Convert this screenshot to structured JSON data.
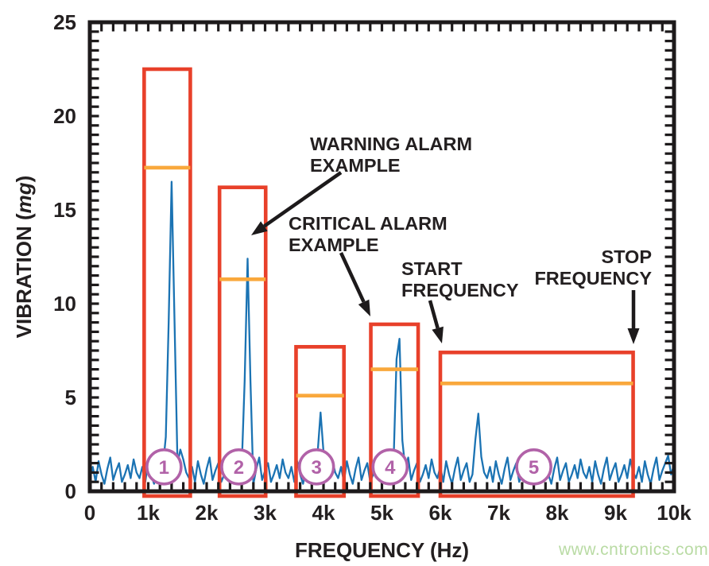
{
  "chart_data": {
    "type": "line",
    "title": "",
    "xlabel": "FREQUENCY (Hz)",
    "ylabel": "VIBRATION (mg)",
    "ylabel_italic_part": "mg",
    "xlim": [
      0,
      10000
    ],
    "ylim": [
      0,
      25
    ],
    "grid": false,
    "legend": "none",
    "x_ticks": [
      {
        "value": 0,
        "label": "0"
      },
      {
        "value": 1000,
        "label": "1k"
      },
      {
        "value": 2000,
        "label": "2k"
      },
      {
        "value": 3000,
        "label": "3k"
      },
      {
        "value": 4000,
        "label": "4k"
      },
      {
        "value": 5000,
        "label": "5k"
      },
      {
        "value": 6000,
        "label": "6k"
      },
      {
        "value": 7000,
        "label": "7k"
      },
      {
        "value": 8000,
        "label": "8k"
      },
      {
        "value": 9000,
        "label": "9k"
      },
      {
        "value": 10000,
        "label": "10k"
      }
    ],
    "y_ticks": [
      {
        "value": 0,
        "label": "0"
      },
      {
        "value": 5,
        "label": "5"
      },
      {
        "value": 10,
        "label": "10"
      },
      {
        "value": 15,
        "label": "15"
      },
      {
        "value": 20,
        "label": "20"
      },
      {
        "value": 25,
        "label": "25"
      }
    ],
    "minor_tick_step_x_hz": 200,
    "minor_tick_step_y_mg": 0.5,
    "spectrum": {
      "name": "vibration-spectrum",
      "color": "#1b73b3",
      "sample_step_hz": 50,
      "noise_pattern_mg": [
        0.7,
        1.3,
        0.5,
        1.6,
        0.9,
        0.4,
        1.2,
        1.8,
        0.6,
        1.1,
        1.5,
        0.5,
        0.9,
        1.4,
        0.7,
        1.7,
        1.0
      ],
      "peaks": [
        {
          "freq_hz": 760,
          "amplitude_mg": 1.9,
          "halfwidth_hz": 80
        },
        {
          "freq_hz": 1300,
          "amplitude_mg": 2.9,
          "halfwidth_hz": 90
        },
        {
          "freq_hz": 1400,
          "amplitude_mg": 16.5,
          "halfwidth_hz": 110
        },
        {
          "freq_hz": 1560,
          "amplitude_mg": 2.5,
          "halfwidth_hz": 90
        },
        {
          "freq_hz": 2700,
          "amplitude_mg": 12.4,
          "halfwidth_hz": 95
        },
        {
          "freq_hz": 3950,
          "amplitude_mg": 4.2,
          "halfwidth_hz": 100
        },
        {
          "freq_hz": 5280,
          "amplitude_mg": 10.3,
          "halfwidth_hz": 95
        },
        {
          "freq_hz": 6640,
          "amplitude_mg": 4.6,
          "halfwidth_hz": 100
        },
        {
          "freq_hz": 9900,
          "amplitude_mg": 1.9,
          "halfwidth_hz": 90
        }
      ]
    },
    "alarm_bands": [
      {
        "id": "1",
        "start_hz": 930,
        "stop_hz": 1720,
        "critical_mg": 22.5,
        "warning_mg": 17.25
      },
      {
        "id": "2",
        "start_hz": 2220,
        "stop_hz": 3010,
        "critical_mg": 16.2,
        "warning_mg": 11.3
      },
      {
        "id": "3",
        "start_hz": 3530,
        "stop_hz": 4350,
        "critical_mg": 7.7,
        "warning_mg": 5.1
      },
      {
        "id": "4",
        "start_hz": 4810,
        "stop_hz": 5620,
        "critical_mg": 8.9,
        "warning_mg": 6.5
      },
      {
        "id": "5",
        "start_hz": 6000,
        "stop_hz": 9300,
        "critical_mg": 7.4,
        "warning_mg": 5.75
      }
    ],
    "band_markers": [
      {
        "label": "1",
        "freq_hz": 1270
      },
      {
        "label": "2",
        "freq_hz": 2550
      },
      {
        "label": "3",
        "freq_hz": 3880
      },
      {
        "label": "4",
        "freq_hz": 5140
      },
      {
        "label": "5",
        "freq_hz": 7600
      }
    ],
    "band_marker_level_mg": 1.3,
    "colors": {
      "critical_band": "#e8402a",
      "warning_level": "#f9a83c",
      "trace": "#1b73b3",
      "marker": "#b162a8",
      "axis": "#1d1a1b",
      "text": "#231f20",
      "annotation": "#1d1a1b"
    }
  },
  "annotations": {
    "warning": {
      "lines": [
        "WARNING ALARM",
        "EXAMPLE"
      ]
    },
    "critical": {
      "lines": [
        "CRITICAL ALARM",
        "EXAMPLE"
      ]
    },
    "start": {
      "lines": [
        "START",
        "FREQUENCY"
      ]
    },
    "stop": {
      "lines": [
        "STOP",
        "FREQUENCY"
      ]
    }
  },
  "watermark": {
    "text": "www.cntronics.com",
    "color": "#b9dba4"
  }
}
